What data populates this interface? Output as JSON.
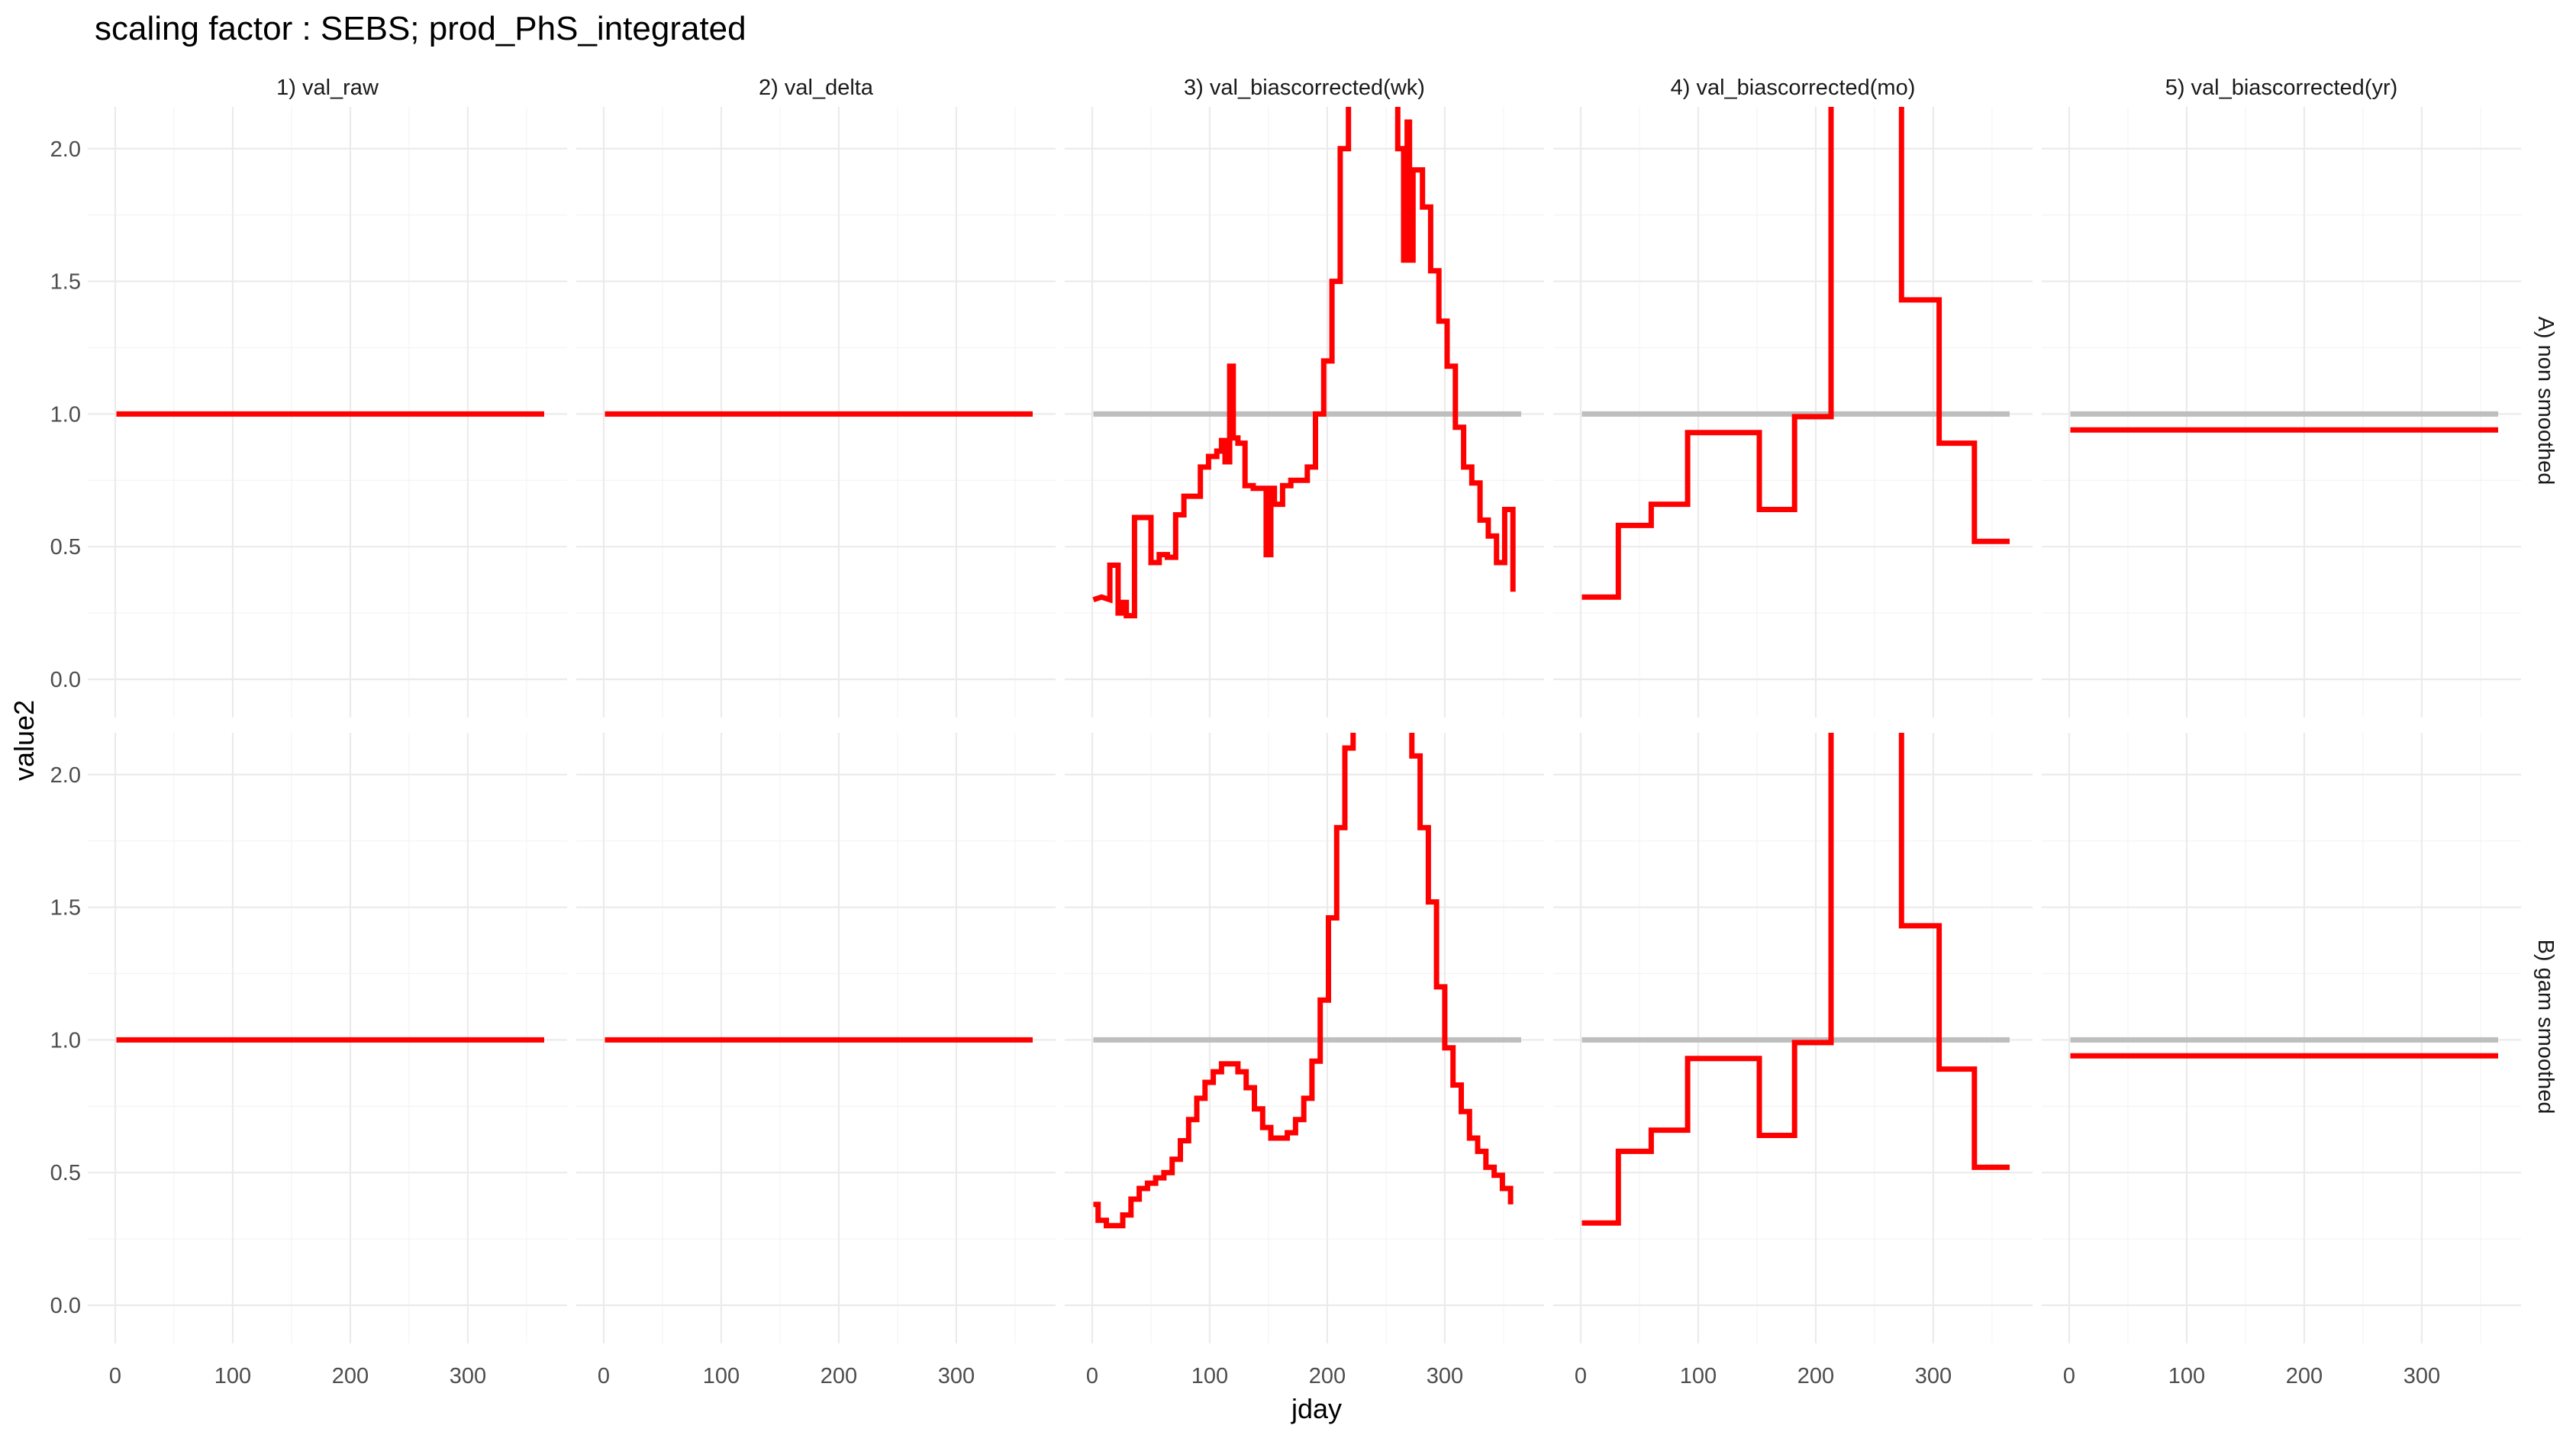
{
  "chart_data": {
    "type": "line",
    "title": "scaling factor : SEBS; prod_PhS_integrated",
    "xlabel": "jday",
    "ylabel": "value2",
    "xlim": [
      0,
      365
    ],
    "ylim": [
      0,
      2.1
    ],
    "x_ticks": [
      0,
      100,
      200,
      300
    ],
    "y_ticks": [
      "0.0",
      "0.5",
      "1.0",
      "1.5",
      "2.0"
    ],
    "grid": true,
    "columns": [
      "1) val_raw",
      "2) val_delta",
      "3) val_biascorrected(wk)",
      "4) val_biascorrected(mo)",
      "5) val_biascorrected(yr)"
    ],
    "rows": [
      "A) non smoothed",
      "B) gam smoothed"
    ],
    "series_colors": {
      "value": "#ff0000",
      "reference": "#bebebe"
    },
    "panels": [
      {
        "row": 0,
        "col": 0,
        "reference": false,
        "points": [
          [
            1,
            1.0
          ],
          [
            365,
            1.0
          ]
        ]
      },
      {
        "row": 0,
        "col": 1,
        "reference": false,
        "points": [
          [
            1,
            1.0
          ],
          [
            365,
            1.0
          ]
        ]
      },
      {
        "row": 0,
        "col": 2,
        "reference": true,
        "points": [
          [
            1,
            0.3
          ],
          [
            8,
            0.31
          ],
          [
            15,
            0.3
          ],
          [
            15,
            0.43
          ],
          [
            22,
            0.43
          ],
          [
            22,
            0.25
          ],
          [
            26,
            0.25
          ],
          [
            26,
            0.29
          ],
          [
            29,
            0.29
          ],
          [
            29,
            0.24
          ],
          [
            36,
            0.24
          ],
          [
            36,
            0.61
          ],
          [
            50,
            0.61
          ],
          [
            50,
            0.44
          ],
          [
            57,
            0.44
          ],
          [
            57,
            0.47
          ],
          [
            64,
            0.47
          ],
          [
            64,
            0.46
          ],
          [
            71,
            0.46
          ],
          [
            71,
            0.62
          ],
          [
            78,
            0.62
          ],
          [
            78,
            0.69
          ],
          [
            92,
            0.69
          ],
          [
            92,
            0.8
          ],
          [
            99,
            0.8
          ],
          [
            99,
            0.84
          ],
          [
            106,
            0.84
          ],
          [
            106,
            0.86
          ],
          [
            110,
            0.86
          ],
          [
            110,
            0.9
          ],
          [
            113,
            0.9
          ],
          [
            113,
            0.82
          ],
          [
            117,
            0.82
          ],
          [
            117,
            1.18
          ],
          [
            120,
            1.18
          ],
          [
            120,
            0.91
          ],
          [
            124,
            0.91
          ],
          [
            124,
            0.89
          ],
          [
            130,
            0.89
          ],
          [
            130,
            0.73
          ],
          [
            137,
            0.73
          ],
          [
            137,
            0.72
          ],
          [
            148,
            0.72
          ],
          [
            148,
            0.47
          ],
          [
            152,
            0.47
          ],
          [
            152,
            0.72
          ],
          [
            155,
            0.72
          ],
          [
            155,
            0.66
          ],
          [
            162,
            0.66
          ],
          [
            162,
            0.73
          ],
          [
            169,
            0.73
          ],
          [
            169,
            0.75
          ],
          [
            183,
            0.75
          ],
          [
            183,
            0.8
          ],
          [
            190,
            0.8
          ],
          [
            190,
            1.0
          ],
          [
            197,
            1.0
          ],
          [
            197,
            1.2
          ],
          [
            204,
            1.2
          ],
          [
            204,
            1.5
          ],
          [
            211,
            1.5
          ],
          [
            211,
            2.0
          ],
          [
            218,
            2.0
          ],
          [
            218,
            2.25
          ],
          [
            260,
            2.25
          ],
          [
            260,
            2.0
          ],
          [
            265,
            2.0
          ],
          [
            265,
            1.58
          ],
          [
            268,
            1.58
          ],
          [
            268,
            2.1
          ],
          [
            270,
            2.1
          ],
          [
            270,
            1.58
          ],
          [
            273,
            1.58
          ],
          [
            273,
            1.92
          ],
          [
            281,
            1.92
          ],
          [
            281,
            1.78
          ],
          [
            288,
            1.78
          ],
          [
            288,
            1.54
          ],
          [
            295,
            1.54
          ],
          [
            295,
            1.35
          ],
          [
            302,
            1.35
          ],
          [
            302,
            1.18
          ],
          [
            309,
            1.18
          ],
          [
            309,
            0.95
          ],
          [
            316,
            0.95
          ],
          [
            316,
            0.8
          ],
          [
            323,
            0.8
          ],
          [
            323,
            0.74
          ],
          [
            330,
            0.74
          ],
          [
            330,
            0.6
          ],
          [
            337,
            0.6
          ],
          [
            337,
            0.54
          ],
          [
            344,
            0.54
          ],
          [
            344,
            0.44
          ],
          [
            351,
            0.44
          ],
          [
            351,
            0.64
          ],
          [
            358,
            0.64
          ],
          [
            358,
            0.33
          ]
        ]
      },
      {
        "row": 0,
        "col": 3,
        "reference": true,
        "points": [
          [
            1,
            0.31
          ],
          [
            32,
            0.31
          ],
          [
            32,
            0.58
          ],
          [
            60,
            0.58
          ],
          [
            60,
            0.66
          ],
          [
            91,
            0.66
          ],
          [
            91,
            0.93
          ],
          [
            152,
            0.93
          ],
          [
            152,
            0.64
          ],
          [
            182,
            0.64
          ],
          [
            182,
            0.99
          ],
          [
            213,
            0.99
          ],
          [
            213,
            2.25
          ],
          [
            273,
            2.25
          ],
          [
            273,
            1.43
          ],
          [
            305,
            1.43
          ],
          [
            305,
            0.89
          ],
          [
            335,
            0.89
          ],
          [
            335,
            0.52
          ],
          [
            365,
            0.52
          ]
        ]
      },
      {
        "row": 0,
        "col": 4,
        "reference": true,
        "points": [
          [
            1,
            0.94
          ],
          [
            365,
            0.94
          ]
        ]
      },
      {
        "row": 1,
        "col": 0,
        "reference": false,
        "points": [
          [
            1,
            1.0
          ],
          [
            365,
            1.0
          ]
        ]
      },
      {
        "row": 1,
        "col": 1,
        "reference": false,
        "points": [
          [
            1,
            1.0
          ],
          [
            365,
            1.0
          ]
        ]
      },
      {
        "row": 1,
        "col": 2,
        "reference": true,
        "points": [
          [
            1,
            0.38
          ],
          [
            5,
            0.38
          ],
          [
            5,
            0.32
          ],
          [
            12,
            0.32
          ],
          [
            12,
            0.3
          ],
          [
            26,
            0.3
          ],
          [
            26,
            0.34
          ],
          [
            33,
            0.34
          ],
          [
            33,
            0.4
          ],
          [
            40,
            0.4
          ],
          [
            40,
            0.44
          ],
          [
            47,
            0.44
          ],
          [
            47,
            0.46
          ],
          [
            54,
            0.46
          ],
          [
            54,
            0.48
          ],
          [
            61,
            0.48
          ],
          [
            61,
            0.5
          ],
          [
            68,
            0.5
          ],
          [
            68,
            0.55
          ],
          [
            75,
            0.55
          ],
          [
            75,
            0.62
          ],
          [
            82,
            0.62
          ],
          [
            82,
            0.7
          ],
          [
            89,
            0.7
          ],
          [
            89,
            0.78
          ],
          [
            96,
            0.78
          ],
          [
            96,
            0.84
          ],
          [
            103,
            0.84
          ],
          [
            103,
            0.88
          ],
          [
            110,
            0.88
          ],
          [
            110,
            0.91
          ],
          [
            124,
            0.91
          ],
          [
            124,
            0.88
          ],
          [
            131,
            0.88
          ],
          [
            131,
            0.82
          ],
          [
            138,
            0.82
          ],
          [
            138,
            0.74
          ],
          [
            145,
            0.74
          ],
          [
            145,
            0.67
          ],
          [
            152,
            0.67
          ],
          [
            152,
            0.63
          ],
          [
            166,
            0.63
          ],
          [
            166,
            0.65
          ],
          [
            173,
            0.65
          ],
          [
            173,
            0.7
          ],
          [
            180,
            0.7
          ],
          [
            180,
            0.78
          ],
          [
            187,
            0.78
          ],
          [
            187,
            0.92
          ],
          [
            194,
            0.92
          ],
          [
            194,
            1.15
          ],
          [
            201,
            1.15
          ],
          [
            201,
            1.46
          ],
          [
            208,
            1.46
          ],
          [
            208,
            1.8
          ],
          [
            215,
            1.8
          ],
          [
            215,
            2.1
          ],
          [
            222,
            2.1
          ],
          [
            222,
            2.25
          ],
          [
            272,
            2.25
          ],
          [
            272,
            2.07
          ],
          [
            279,
            2.07
          ],
          [
            279,
            1.8
          ],
          [
            286,
            1.8
          ],
          [
            286,
            1.52
          ],
          [
            293,
            1.52
          ],
          [
            293,
            1.2
          ],
          [
            300,
            1.2
          ],
          [
            300,
            0.97
          ],
          [
            307,
            0.97
          ],
          [
            307,
            0.83
          ],
          [
            314,
            0.83
          ],
          [
            314,
            0.73
          ],
          [
            321,
            0.73
          ],
          [
            321,
            0.63
          ],
          [
            328,
            0.63
          ],
          [
            328,
            0.58
          ],
          [
            335,
            0.58
          ],
          [
            335,
            0.52
          ],
          [
            342,
            0.52
          ],
          [
            342,
            0.49
          ],
          [
            349,
            0.49
          ],
          [
            349,
            0.44
          ],
          [
            356,
            0.44
          ],
          [
            356,
            0.38
          ]
        ]
      },
      {
        "row": 1,
        "col": 3,
        "reference": true,
        "points": [
          [
            1,
            0.31
          ],
          [
            32,
            0.31
          ],
          [
            32,
            0.58
          ],
          [
            60,
            0.58
          ],
          [
            60,
            0.66
          ],
          [
            91,
            0.66
          ],
          [
            91,
            0.93
          ],
          [
            152,
            0.93
          ],
          [
            152,
            0.64
          ],
          [
            182,
            0.64
          ],
          [
            182,
            0.99
          ],
          [
            213,
            0.99
          ],
          [
            213,
            2.25
          ],
          [
            273,
            2.25
          ],
          [
            273,
            1.43
          ],
          [
            305,
            1.43
          ],
          [
            305,
            0.89
          ],
          [
            335,
            0.89
          ],
          [
            335,
            0.52
          ],
          [
            365,
            0.52
          ]
        ]
      },
      {
        "row": 1,
        "col": 4,
        "reference": true,
        "points": [
          [
            1,
            0.94
          ],
          [
            365,
            0.94
          ]
        ]
      }
    ]
  }
}
